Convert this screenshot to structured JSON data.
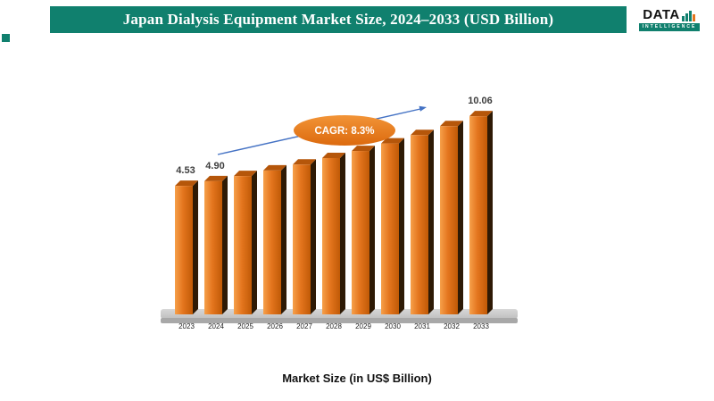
{
  "banner": {
    "title": "Japan Dialysis Equipment Market Size, 2024–2033 (USD Billion)"
  },
  "logo": {
    "text": "DATA",
    "subtitle": "INTELLIGENCE"
  },
  "chart_data": {
    "type": "bar",
    "title": "Japan Dialysis Equipment Market Size, 2024–2033 (USD Billion)",
    "categories": [
      "2023",
      "2024",
      "2025",
      "2026",
      "2027",
      "2028",
      "2029",
      "2030",
      "2031",
      "2032",
      "2033"
    ],
    "values": [
      4.53,
      4.9,
      5.31,
      5.75,
      6.22,
      6.74,
      7.3,
      7.9,
      8.56,
      9.27,
      10.06
    ],
    "data_labels": [
      "4.53",
      "4.90",
      "",
      "",
      "",
      "",
      "",
      "",
      "",
      "",
      "10.06"
    ],
    "annotation": "CAGR: 8.3%",
    "xlabel": "Market Size (in US$ Billion)",
    "ylabel": "",
    "legend": "none",
    "grid": "off"
  },
  "caption": "Market Size (in US$ Billion)",
  "colors": {
    "banner": "#10806E",
    "bar_light": "#F6A04A",
    "bar_mid": "#E4751E",
    "bar_dark": "#C05A06",
    "bar_side": "#2E1A05",
    "bar_top": "#B5560A",
    "arrow": "#4472C4",
    "badge_light": "#F29437",
    "badge_dark": "#DC6A0E",
    "floor_light": "#D8D8D8",
    "floor_dark": "#A8A8A8",
    "label_text": "#3D3D3D"
  }
}
